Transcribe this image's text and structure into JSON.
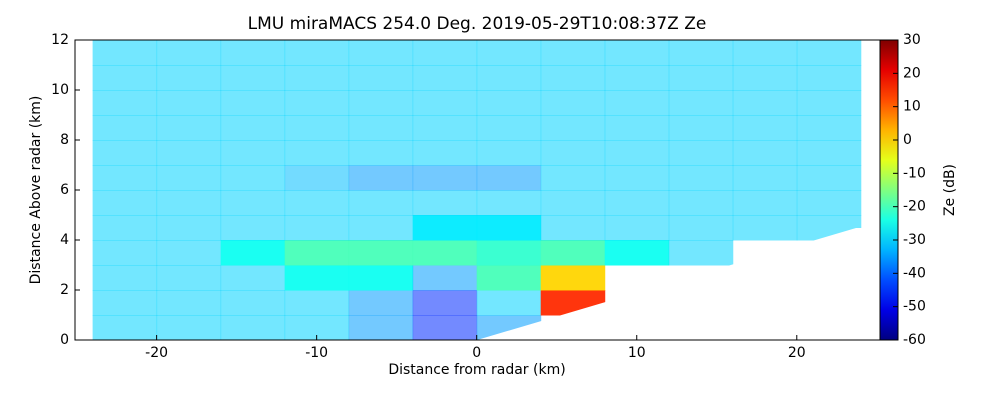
{
  "chart_data": {
    "type": "heatmap",
    "title": "LMU miraMACS 254.0 Deg. 2019-05-29T10:08:37Z  Ze",
    "x_label": "Distance from radar (km)",
    "y_label": "Distance Above radar  (km)",
    "colorbar_label": "Ze (dB)",
    "colormap": "jet",
    "xlim": [
      -25.1,
      25.2
    ],
    "ylim": [
      0,
      12
    ],
    "xticks": [
      -20,
      -10,
      0,
      10,
      20
    ],
    "yticks": [
      0,
      2,
      4,
      6,
      8,
      10,
      12
    ],
    "clim": [
      -60,
      30
    ],
    "cticks": [
      30,
      20,
      10,
      0,
      -10,
      -20,
      -30,
      -40,
      -50,
      -60
    ],
    "xbins": [
      -24,
      -20,
      -16,
      -12,
      -8,
      -4,
      0,
      4,
      8,
      12,
      16,
      20,
      24
    ],
    "ybins": [
      0,
      1,
      2,
      3,
      4,
      5,
      6,
      7,
      8,
      9,
      10,
      11,
      12
    ],
    "values": [
      [
        -30,
        -30,
        -30,
        -30,
        -35,
        -45,
        -35,
        null,
        null,
        null,
        null,
        null
      ],
      [
        -30,
        -30,
        -30,
        -30,
        -35,
        -45,
        -30,
        15,
        null,
        null,
        null,
        null
      ],
      [
        -30,
        -30,
        -30,
        -25,
        -25,
        -35,
        -20,
        0,
        null,
        null,
        null,
        null
      ],
      [
        -30,
        -30,
        -25,
        -20,
        -20,
        -20,
        -22,
        -20,
        -25,
        -30,
        null,
        null
      ],
      [
        -30,
        -30,
        -30,
        -30,
        -30,
        -28,
        -28,
        -30,
        -30,
        -30,
        -30,
        -30
      ],
      [
        -30,
        -30,
        -30,
        -30,
        -30,
        -30,
        -30,
        -30,
        -30,
        -30,
        -30,
        -30
      ],
      [
        -30,
        -30,
        -30,
        -32,
        -35,
        -35,
        -35,
        -30,
        -30,
        -30,
        -30,
        -30
      ],
      [
        -30,
        -30,
        -30,
        -30,
        -30,
        -30,
        -30,
        -30,
        -30,
        -30,
        -30,
        -30
      ],
      [
        -30,
        -30,
        -30,
        -30,
        -30,
        -30,
        -30,
        -30,
        -30,
        -30,
        -30,
        -30
      ],
      [
        -30,
        -30,
        -30,
        -30,
        -30,
        -30,
        -30,
        -30,
        -30,
        -30,
        -30,
        -30
      ],
      [
        -30,
        -30,
        -30,
        -30,
        -30,
        -30,
        -30,
        -30,
        -30,
        -30,
        -30,
        -30
      ],
      [
        -30,
        -30,
        -30,
        -30,
        -30,
        -30,
        -30,
        -30,
        -30,
        -30,
        -30,
        -30
      ]
    ]
  }
}
